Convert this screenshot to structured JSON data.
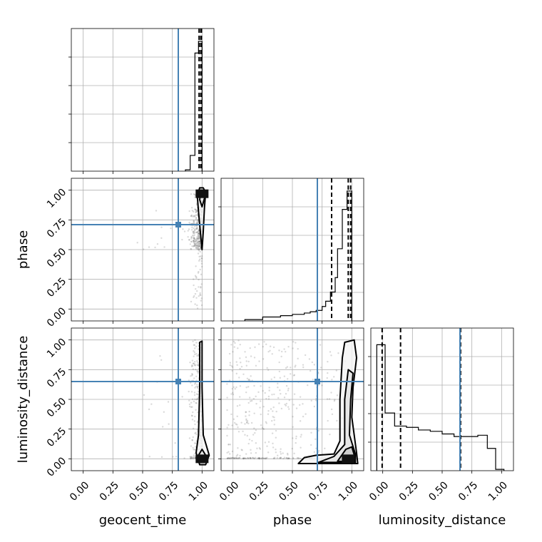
{
  "chart_data": {
    "type": "corner",
    "parameters": [
      "geocent_time",
      "phase",
      "luminosity_distance"
    ],
    "axis_range": [
      -0.1,
      1.1
    ],
    "tick_values": [
      0.0,
      0.25,
      0.5,
      0.75,
      1.0
    ],
    "tick_labels": [
      "0.00",
      "0.25",
      "0.50",
      "0.75",
      "1.00"
    ],
    "truth_values": {
      "geocent_time": 0.8,
      "phase": 0.71,
      "luminosity_distance": 0.65
    },
    "truth_color": "#4682b4",
    "grid": true,
    "histograms": [
      {
        "parameter": "geocent_time",
        "bin_edges": [
          0.86,
          0.9,
          0.94,
          0.97,
          1.0
        ],
        "counts": [
          0.01,
          0.12,
          0.9,
          0.99
        ],
        "quantile_lines": [
          0.975,
          0.99,
          0.995
        ]
      },
      {
        "parameter": "phase",
        "bin_edges": [
          0.1,
          0.25,
          0.4,
          0.5,
          0.6,
          0.65,
          0.7,
          0.75,
          0.78,
          0.82,
          0.86,
          0.88,
          0.92,
          0.96,
          1.0
        ],
        "counts": [
          0.01,
          0.03,
          0.04,
          0.05,
          0.06,
          0.07,
          0.08,
          0.11,
          0.15,
          0.22,
          0.33,
          0.55,
          0.85,
          0.99
        ],
        "quantile_lines": [
          0.83,
          0.97,
          0.99
        ]
      },
      {
        "parameter": "luminosity_distance",
        "bin_edges": [
          -0.05,
          0.02,
          0.1,
          0.2,
          0.3,
          0.4,
          0.5,
          0.6,
          0.7,
          0.8,
          0.88,
          0.95,
          1.02
        ],
        "counts": [
          0.96,
          0.44,
          0.34,
          0.33,
          0.31,
          0.3,
          0.28,
          0.26,
          0.26,
          0.27,
          0.17,
          0.01
        ],
        "quantile_lines": [
          -0.005,
          0.15,
          0.655
        ]
      }
    ],
    "panels_2d": [
      {
        "x": "geocent_time",
        "y": "phase",
        "high_density_point": [
          1.0,
          0.97
        ],
        "contours": [
          {
            "level": "outer",
            "points": [
              [
                0.98,
                1.02
              ],
              [
                0.96,
                0.95
              ],
              [
                0.97,
                0.82
              ],
              [
                0.99,
                0.6
              ],
              [
                1.0,
                0.5
              ],
              [
                1.01,
                0.65
              ],
              [
                1.02,
                0.85
              ],
              [
                1.03,
                0.98
              ],
              [
                1.01,
                1.02
              ]
            ]
          },
          {
            "level": "inner",
            "points": [
              [
                0.99,
                1.0
              ],
              [
                0.98,
                0.92
              ],
              [
                1.0,
                0.86
              ],
              [
                1.02,
                0.93
              ],
              [
                1.01,
                1.0
              ]
            ]
          }
        ]
      },
      {
        "x": "geocent_time",
        "y": "luminosity_distance",
        "high_density_point": [
          1.0,
          0.0
        ],
        "contours": [
          {
            "level": "outer",
            "points": [
              [
                0.98,
                -0.05
              ],
              [
                0.95,
                0.05
              ],
              [
                0.97,
                0.2
              ],
              [
                0.98,
                0.6
              ],
              [
                0.98,
                0.98
              ],
              [
                1.0,
                0.99
              ],
              [
                1.0,
                0.6
              ],
              [
                1.01,
                0.2
              ],
              [
                1.06,
                0.03
              ],
              [
                1.03,
                -0.05
              ]
            ]
          },
          {
            "level": "inner",
            "points": [
              [
                0.98,
                -0.03
              ],
              [
                0.97,
                0.03
              ],
              [
                1.0,
                0.08
              ],
              [
                1.03,
                0.03
              ],
              [
                1.02,
                -0.03
              ]
            ]
          }
        ]
      },
      {
        "x": "phase",
        "y": "luminosity_distance",
        "high_density_point": [
          0.97,
          0.0
        ],
        "contours": [
          {
            "level": "outer",
            "points": [
              [
                0.55,
                -0.04
              ],
              [
                0.6,
                0.01
              ],
              [
                0.7,
                0.03
              ],
              [
                0.85,
                0.04
              ],
              [
                0.9,
                0.15
              ],
              [
                0.9,
                0.5
              ],
              [
                0.92,
                0.85
              ],
              [
                0.94,
                0.98
              ],
              [
                1.02,
                1.0
              ],
              [
                1.04,
                0.85
              ],
              [
                1.01,
                0.6
              ],
              [
                1.0,
                0.35
              ],
              [
                1.04,
                0.05
              ],
              [
                1.05,
                -0.04
              ]
            ]
          },
          {
            "level": "middle",
            "points": [
              [
                0.72,
                -0.03
              ],
              [
                0.85,
                0.02
              ],
              [
                0.94,
                0.12
              ],
              [
                0.94,
                0.5
              ],
              [
                0.97,
                0.75
              ],
              [
                1.01,
                0.72
              ],
              [
                0.99,
                0.5
              ],
              [
                0.98,
                0.2
              ],
              [
                1.03,
                0.04
              ],
              [
                1.03,
                -0.03
              ]
            ]
          },
          {
            "level": "inner",
            "points": [
              [
                0.88,
                -0.02
              ],
              [
                0.95,
                0.08
              ],
              [
                1.0,
                0.1
              ],
              [
                1.03,
                0.0
              ],
              [
                1.02,
                -0.03
              ]
            ]
          }
        ]
      }
    ]
  }
}
